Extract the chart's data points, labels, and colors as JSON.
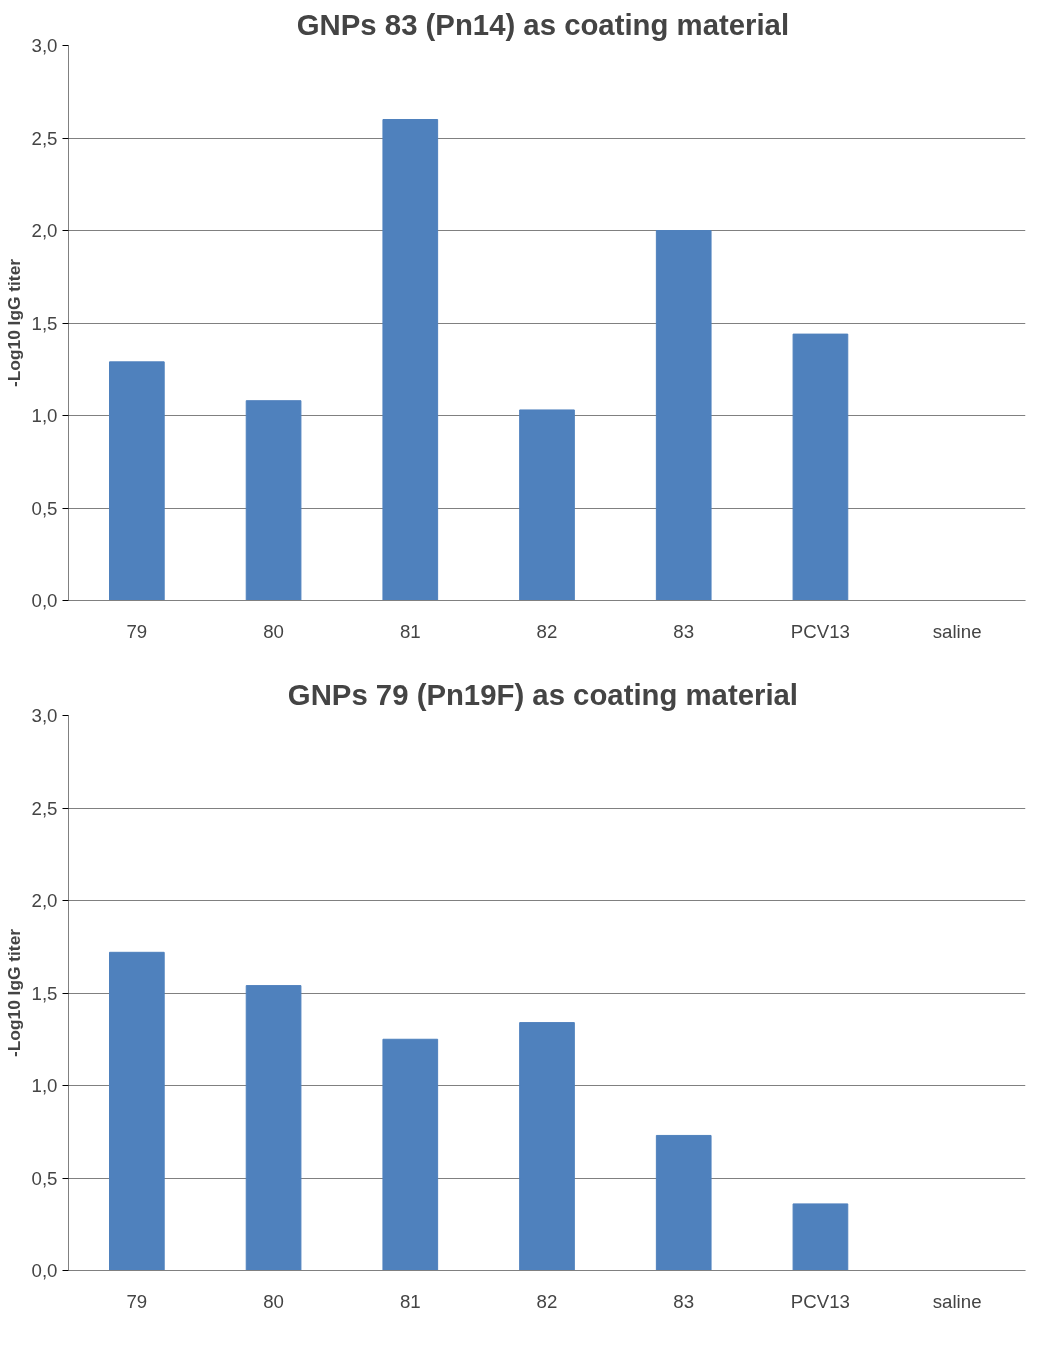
{
  "chart_data": [
    {
      "type": "bar",
      "title": "GNPs 83 (Pn14)  as coating material",
      "ylabel": "-Log10 IgG titer",
      "categories": [
        "79",
        "80",
        "81",
        "82",
        "83",
        "PCV13",
        "saline"
      ],
      "series": [
        {
          "color": "#4f81bd",
          "values": [
            1.29,
            1.08,
            2.6,
            1.03,
            2.0,
            1.44,
            0
          ]
        }
      ],
      "ylim": [
        0,
        3
      ],
      "yticks": [
        {
          "value": 0,
          "label": "0,0"
        },
        {
          "value": 0.5,
          "label": "0,5"
        },
        {
          "value": 1,
          "label": "1,0"
        },
        {
          "value": 1.5,
          "label": "1,5"
        },
        {
          "value": 2,
          "label": "2,0"
        },
        {
          "value": 2.5,
          "label": "2,5"
        },
        {
          "value": 3,
          "label": "3,0"
        }
      ],
      "grid": "y"
    },
    {
      "type": "bar",
      "title": "GNPs 79 (Pn19F)  as coating material",
      "ylabel": "-Log10 IgG titer",
      "categories": [
        "79",
        "80",
        "81",
        "82",
        "83",
        "PCV13",
        "saline"
      ],
      "series": [
        {
          "color": "#4f81bd",
          "values": [
            1.72,
            1.54,
            1.25,
            1.34,
            0.73,
            0.36,
            0
          ]
        }
      ],
      "ylim": [
        0,
        3
      ],
      "yticks": [
        {
          "value": 0,
          "label": "0,0"
        },
        {
          "value": 0.5,
          "label": "0,5"
        },
        {
          "value": 1,
          "label": "1,0"
        },
        {
          "value": 1.5,
          "label": "1,5"
        },
        {
          "value": 2,
          "label": "2,0"
        },
        {
          "value": 2.5,
          "label": "2,5"
        },
        {
          "value": 3,
          "label": "3,0"
        }
      ],
      "grid": "y"
    }
  ]
}
